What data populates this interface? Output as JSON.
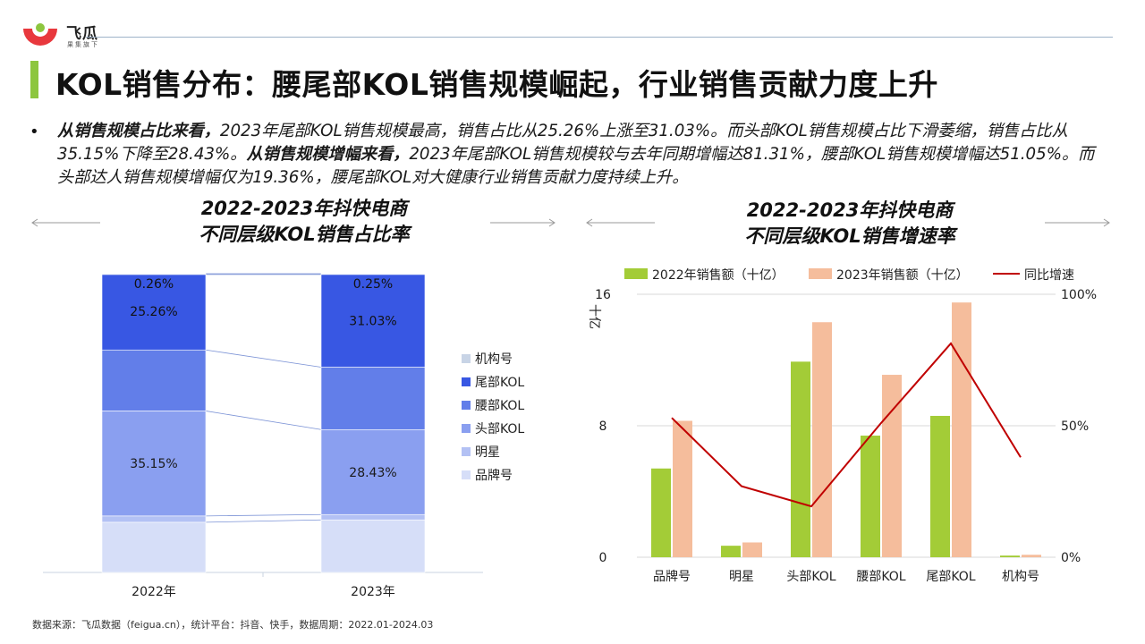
{
  "brand": {
    "name": "飞瓜",
    "tagline": "果集旗下",
    "accent": "#e8383d",
    "highlight": "#8dc63f"
  },
  "title": "KOL销售分布：腰尾部KOL销售规模崛起，行业销售贡献力度上升",
  "summary": {
    "bold1": "从销售规模占比来看，",
    "text1": "2023年尾部KOL销售规模最高，销售占比从25.26%上涨至31.03%。而头部KOL销售规模占比下滑萎缩，销售占比从35.15%下降至28.43%。",
    "bold2": "从销售规模增幅来看，",
    "text2": "2023年尾部KOL销售规模较与去年同期增幅达81.31%，腰部KOL销售规模增幅达51.05%。而头部达人销售规模增幅仅为19.36%，腰尾部KOL对大健康行业销售贡献力度持续上升。"
  },
  "left_chart": {
    "title_line1": "2022-2023年抖快电商",
    "title_line2": "不同层级KOL销售占比率"
  },
  "right_chart": {
    "title_line1": "2022-2023年抖快电商",
    "title_line2": "不同层级KOL销售增速率"
  },
  "source": "数据来源：飞瓜数据（feigua.cn），统计平台：抖音、快手，数据周期：2022.01-2024.03",
  "chart_data": [
    {
      "type": "bar",
      "stacked": "percent",
      "categories": [
        "2022年",
        "2023年"
      ],
      "series": [
        {
          "name": "品牌号",
          "color": "#d6def8",
          "values": [
            16.8,
            17.6
          ]
        },
        {
          "name": "明星",
          "color": "#b3c1f4",
          "values": [
            2.11,
            1.79
          ]
        },
        {
          "name": "头部KOL",
          "color": "#8a9ff0",
          "values": [
            35.15,
            28.43
          ]
        },
        {
          "name": "腰部KOL",
          "color": "#627ee9",
          "values": [
            20.42,
            20.9
          ]
        },
        {
          "name": "尾部KOL",
          "color": "#3857e3",
          "values": [
            25.26,
            31.03
          ]
        },
        {
          "name": "机构号",
          "color": "#c8d4e6",
          "values": [
            0.26,
            0.25
          ]
        }
      ],
      "data_labels": [
        {
          "series": "机构号",
          "values": [
            "0.26%",
            "0.25%"
          ]
        },
        {
          "series": "尾部KOL",
          "values": [
            "25.26%",
            "31.03%"
          ]
        },
        {
          "series": "头部KOL",
          "values": [
            "35.15%",
            "28.43%"
          ]
        }
      ],
      "legend": [
        "机构号",
        "尾部KOL",
        "腰部KOL",
        "头部KOL",
        "明星",
        "品牌号"
      ],
      "legend_position": "right",
      "ylim": [
        0,
        100
      ]
    },
    {
      "type": "bar",
      "combo": "bar+line",
      "categories": [
        "品牌号",
        "明星",
        "头部KOL",
        "腰部KOL",
        "尾部KOL",
        "机构号"
      ],
      "series": [
        {
          "name": "2022年销售额（十亿）",
          "color": "#a3cc37",
          "axis": "left",
          "values": [
            5.4,
            0.7,
            11.9,
            7.4,
            8.6,
            0.1
          ]
        },
        {
          "name": "2023年销售额（十亿）",
          "color": "#f5bd9c",
          "axis": "left",
          "values": [
            8.3,
            0.9,
            14.3,
            11.1,
            15.5,
            0.15
          ]
        },
        {
          "name": "同比增速",
          "type": "line",
          "color": "#c00000",
          "axis": "right",
          "values": [
            53,
            27,
            19.36,
            51.05,
            81.31,
            38
          ]
        }
      ],
      "ylabel": "十亿",
      "ylim": [
        0,
        16
      ],
      "yticks": [
        "0",
        "8",
        "16"
      ],
      "y2lim": [
        0,
        100
      ],
      "y2ticks": [
        "0%",
        "50%",
        "100%"
      ],
      "legend_position": "top"
    }
  ]
}
